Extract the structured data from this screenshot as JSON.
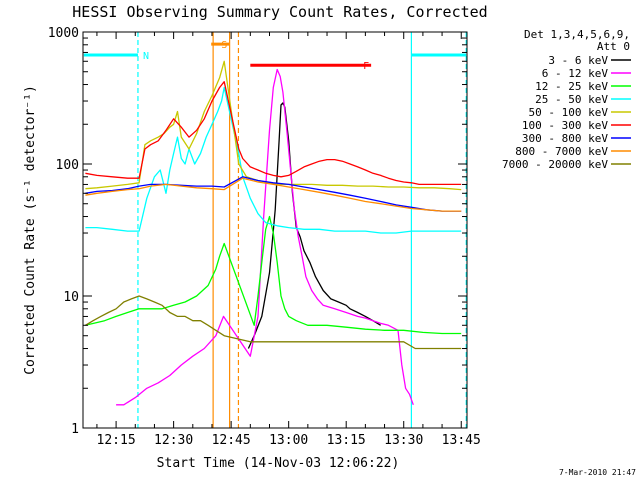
{
  "chart_data": {
    "type": "line",
    "title": "HESSI Observing Summary Count Rates, Corrected",
    "xlabel": "Start Time (14-Nov-03 12:06:22)",
    "ylabel": "Corrected Count Rate (s⁻¹ detector⁻¹)",
    "x_unit": "minutes after 12:00 UT",
    "xlim": [
      6.37,
      106.5
    ],
    "ylim": [
      1,
      1000
    ],
    "yscale": "log",
    "x_ticks": [
      {
        "x": 15,
        "label": "12:15"
      },
      {
        "x": 30,
        "label": "12:30"
      },
      {
        "x": 45,
        "label": "12:45"
      },
      {
        "x": 60,
        "label": "13:00"
      },
      {
        "x": 75,
        "label": "13:15"
      },
      {
        "x": 90,
        "label": "13:30"
      },
      {
        "x": 105,
        "label": "13:45"
      }
    ],
    "y_ticks": [
      {
        "y": 1,
        "label": "1"
      },
      {
        "y": 10,
        "label": "10"
      },
      {
        "y": 100,
        "label": "100"
      },
      {
        "y": 1000,
        "label": "1000"
      }
    ],
    "legend": {
      "placement": "right",
      "header": [
        "Det 1,3,4,5,6,9,",
        "Att 0"
      ]
    },
    "series": [
      {
        "name": "3 - 6 keV",
        "color": "#000000",
        "x": [
          49.5,
          51,
          53,
          55,
          56.5,
          57.5,
          58,
          58.5,
          59,
          60,
          61,
          62,
          63,
          64,
          65.5,
          67,
          69,
          71,
          73,
          75,
          76,
          78,
          80,
          82,
          84
        ],
        "y": [
          4,
          5,
          7,
          15,
          45,
          150,
          280,
          290,
          270,
          150,
          60,
          33,
          28,
          22,
          18,
          14,
          11,
          9.5,
          9,
          8.5,
          8,
          7.5,
          7,
          6.5,
          6
        ]
      },
      {
        "name": "6 - 12 keV",
        "color": "#ff00ff",
        "x": [
          15,
          17,
          20,
          23,
          26,
          29,
          32,
          35,
          38,
          41,
          43,
          50,
          52,
          53.5,
          55,
          56,
          57,
          57.8,
          58.5,
          59.5,
          60.5,
          61.5,
          62.5,
          63.5,
          64.5,
          66,
          67.5,
          69,
          72,
          75,
          78,
          80,
          82,
          84,
          86,
          88.5,
          89.5,
          90.5,
          91.5,
          92.5
        ],
        "y": [
          1.5,
          1.5,
          1.7,
          2,
          2.2,
          2.5,
          3,
          3.5,
          4,
          5,
          7,
          3.5,
          7,
          40,
          180,
          380,
          520,
          460,
          350,
          180,
          90,
          45,
          28,
          20,
          14,
          11,
          9.5,
          8.5,
          8,
          7.5,
          7,
          6.8,
          6.5,
          6.2,
          6,
          5.5,
          3,
          2,
          1.8,
          1.5
        ]
      },
      {
        "name": "12 - 25 keV",
        "color": "#00ff00",
        "x": [
          7,
          12,
          15,
          18,
          21,
          24,
          27,
          30,
          33,
          36,
          39,
          41,
          42,
          43.2,
          51,
          52,
          53,
          54,
          55,
          56,
          57,
          58,
          59,
          60,
          62,
          65,
          70,
          75,
          80,
          85,
          90,
          95,
          100,
          105
        ],
        "y": [
          6,
          6.5,
          7,
          7.5,
          8,
          8,
          8,
          8.5,
          9,
          10,
          12,
          16,
          20,
          25,
          6,
          10,
          18,
          32,
          40,
          30,
          18,
          10,
          8,
          7,
          6.5,
          6,
          6,
          5.8,
          5.6,
          5.5,
          5.5,
          5.3,
          5.2,
          5.2
        ]
      },
      {
        "name": "25 - 50 keV",
        "color": "#00ffff",
        "x": [
          7,
          10,
          14,
          18,
          21,
          23,
          25,
          26.5,
          28,
          29,
          30,
          31,
          32,
          33,
          34,
          35.5,
          37,
          38.5,
          40,
          41.5,
          42.5,
          43.2,
          47,
          48,
          50,
          52,
          54,
          57,
          60,
          64,
          68,
          72,
          76,
          80,
          84,
          88,
          92,
          96,
          100,
          105
        ],
        "y": [
          33,
          33,
          32,
          31,
          31,
          55,
          80,
          90,
          60,
          90,
          120,
          160,
          110,
          100,
          130,
          100,
          120,
          160,
          200,
          250,
          300,
          380,
          120,
          80,
          55,
          42,
          36,
          34,
          33,
          32,
          32,
          31,
          31,
          31,
          30,
          30,
          31,
          31,
          31,
          31
        ]
      },
      {
        "name": "50 - 100 keV",
        "color": "#c8c800",
        "x": [
          7,
          10,
          14,
          18,
          21,
          22.5,
          24,
          26,
          27.5,
          29,
          30,
          31,
          32,
          34,
          36,
          38,
          40,
          42,
          43.2,
          47,
          49,
          52,
          55,
          58,
          62,
          66,
          70,
          74,
          78,
          82,
          86,
          90,
          94,
          98,
          102,
          105
        ],
        "y": [
          65,
          66,
          68,
          70,
          72,
          140,
          150,
          160,
          170,
          190,
          200,
          250,
          160,
          130,
          170,
          250,
          330,
          450,
          600,
          100,
          80,
          75,
          72,
          70,
          70,
          70,
          69,
          69,
          68,
          68,
          67,
          67,
          66,
          66,
          65,
          64
        ]
      },
      {
        "name": "100 - 300 keV",
        "color": "#ff0000",
        "x": [
          7,
          10,
          14,
          18,
          21,
          22.5,
          24,
          26,
          28,
          30,
          32,
          34,
          36,
          38,
          40,
          42,
          43.2,
          47,
          48,
          50,
          52,
          54,
          56,
          58,
          60,
          62,
          64,
          66,
          68,
          70,
          72,
          74,
          76,
          78,
          80,
          82,
          84,
          86,
          88,
          90,
          92,
          94,
          96,
          98,
          100,
          102,
          105
        ],
        "y": [
          85,
          82,
          80,
          78,
          78,
          130,
          140,
          150,
          180,
          220,
          190,
          160,
          180,
          220,
          300,
          380,
          420,
          130,
          110,
          95,
          90,
          85,
          82,
          80,
          82,
          88,
          95,
          100,
          105,
          108,
          108,
          105,
          100,
          95,
          90,
          85,
          82,
          78,
          75,
          73,
          72,
          70,
          70,
          70,
          70,
          70,
          70
        ]
      },
      {
        "name": "300 - 800 keV",
        "color": "#0000ff",
        "x": [
          7,
          10,
          14,
          18,
          21,
          24,
          28,
          32,
          36,
          40,
          43.2,
          48,
          52,
          56,
          60,
          64,
          68,
          72,
          76,
          80,
          84,
          88,
          92,
          96,
          100,
          105
        ],
        "y": [
          60,
          62,
          63,
          65,
          68,
          70,
          70,
          69,
          68,
          68,
          67,
          80,
          75,
          72,
          70,
          67,
          64,
          61,
          58,
          55,
          52,
          49,
          47,
          45,
          44,
          44
        ]
      },
      {
        "name": "800 - 7000 keV",
        "color": "#ff8c00",
        "x": [
          7,
          10,
          14,
          18,
          21,
          24,
          28,
          32,
          36,
          40,
          43.2,
          48,
          52,
          56,
          60,
          64,
          68,
          72,
          76,
          80,
          84,
          88,
          92,
          96,
          100,
          105
        ],
        "y": [
          58,
          60,
          62,
          64,
          65,
          68,
          70,
          68,
          66,
          65,
          64,
          78,
          73,
          70,
          67,
          64,
          61,
          58,
          55,
          52,
          50,
          48,
          46,
          45,
          44,
          44
        ]
      },
      {
        "name": "7000 - 20000 keV",
        "color": "#808000",
        "x": [
          7,
          9,
          11,
          13,
          15,
          17,
          19,
          21,
          23,
          25,
          27,
          29,
          31,
          33,
          35,
          37,
          39,
          41,
          43.2,
          50,
          55,
          60,
          65,
          70,
          75,
          80,
          85,
          90,
          93,
          96,
          100,
          103,
          105
        ],
        "y": [
          6,
          6.5,
          7,
          7.5,
          8,
          9,
          9.5,
          10,
          9.5,
          9,
          8.5,
          7.5,
          7,
          7,
          6.5,
          6.5,
          6,
          5.5,
          5,
          4.5,
          4.5,
          4.5,
          4.5,
          4.5,
          4.5,
          4.5,
          4.5,
          4.5,
          4,
          4,
          4,
          4,
          4
        ]
      }
    ],
    "flag_bars": [
      {
        "label": "N",
        "color": "#00ffff",
        "segments": [
          [
            6.6,
            20.7
          ],
          [
            92,
            106.3
          ]
        ],
        "y": 670
      },
      {
        "label": "S",
        "color": "#ff8c00",
        "segments": [
          [
            39.8,
            44.5
          ]
        ],
        "y": 810
      },
      {
        "label": "F",
        "color": "#ff0000",
        "segments": [
          [
            50,
            81.5
          ]
        ],
        "y": 560
      }
    ],
    "vlines": [
      {
        "x": 20.7,
        "color": "#00ffff",
        "style": "dashed"
      },
      {
        "x": 40.3,
        "color": "#ff8c00",
        "style": "solid"
      },
      {
        "x": 44.6,
        "color": "#ff8c00",
        "style": "solid"
      },
      {
        "x": 46.9,
        "color": "#ff8c00",
        "style": "dashed"
      },
      {
        "x": 92,
        "color": "#00ffff",
        "style": "solid"
      },
      {
        "x": 106.3,
        "color": "#00ffff",
        "style": "dashed"
      }
    ],
    "timestamp": "7-Mar-2010 21:47"
  }
}
